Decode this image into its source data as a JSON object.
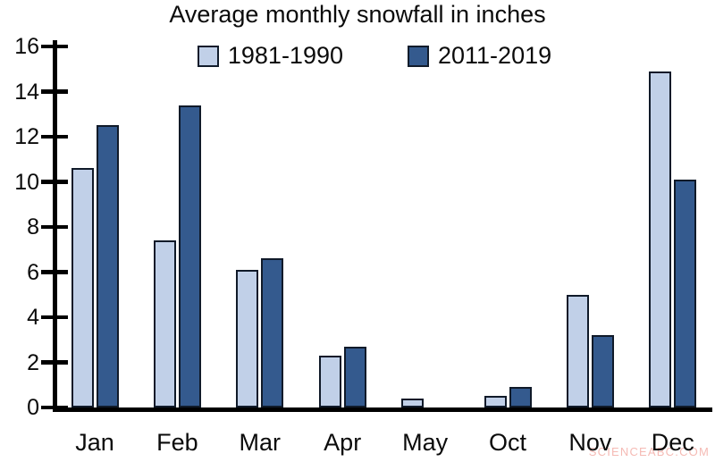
{
  "chart_data": {
    "type": "bar",
    "title": "Average monthly snowfall in inches",
    "categories": [
      "Jan",
      "Feb",
      "Mar",
      "Apr",
      "May",
      "Oct",
      "Nov",
      "Dec"
    ],
    "series": [
      {
        "name": "1981-1990",
        "color": "#C1D0E8",
        "values": [
          10.6,
          7.4,
          6.1,
          2.3,
          0.4,
          0.5,
          5.0,
          14.9
        ]
      },
      {
        "name": "2011-2019",
        "color": "#345A8E",
        "values": [
          12.5,
          13.4,
          6.6,
          2.7,
          0,
          0.9,
          3.2,
          10.1
        ]
      }
    ],
    "xlabel": "",
    "ylabel": "",
    "ylim": [
      0,
      16
    ],
    "yticks": [
      0,
      2,
      4,
      6,
      8,
      10,
      12,
      14,
      16
    ],
    "legend_position": "top-center",
    "grid": false,
    "axis_color": "#000000",
    "bar_border_color": "#101a29"
  },
  "watermark": {
    "text": "SCIENCEABC.COM",
    "color": "#F2A49C"
  }
}
